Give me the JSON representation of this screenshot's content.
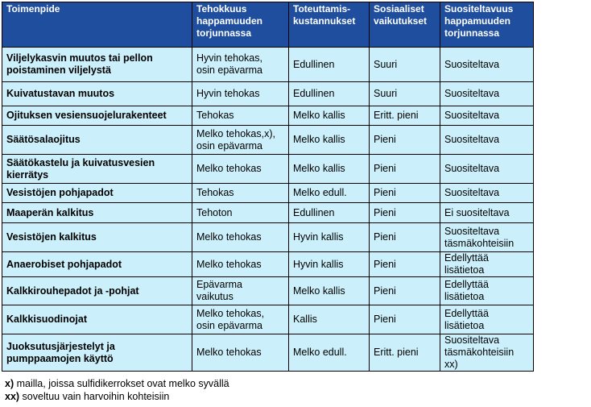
{
  "headers": [
    "Toimenpide",
    "Tehokkuus\nhappamuuden\ntorjunnassa",
    "Toteuttamis-\nkustannukset",
    "Sosiaaliset\nvaikutukset",
    "Suositeltavuus\nhappamuuden\ntorjunnassa"
  ],
  "rows": [
    [
      "Viljelykasvin muutos tai pellon\npoistaminen viljelystä",
      "Hyvin tehokas,\nosin epävarma",
      "Edullinen",
      "Suuri",
      "Suositeltava"
    ],
    [
      "Kuivatustavan muutos",
      "Hyvin tehokas",
      "Edullinen",
      "Suuri",
      "Suositeltava"
    ],
    [
      "Ojituksen vesiensuojelurakenteet",
      "Tehokas",
      "Melko kallis",
      "Eritt. pieni",
      "Suositeltava"
    ],
    [
      "Säätösalaojitus",
      "Melko tehokas,x),\nosin epävarma",
      "Melko kallis",
      "Pieni",
      "Suositeltava"
    ],
    [
      "Säätökastelu ja kuivatusvesien\nkierrätys",
      "Melko tehokas",
      "Melko kallis",
      "Pieni",
      "Suositeltava"
    ],
    [
      "Vesistöjen pohjapadot",
      "Tehokas",
      "Melko edull.",
      "Pieni",
      "Suositeltava"
    ],
    [
      "Maaperän kalkitus",
      "Tehoton",
      "Edullinen",
      "Pieni",
      "Ei suositeltava"
    ],
    [
      "Vesistöjen kalkitus",
      "Melko tehokas",
      "Hyvin kallis",
      "Pieni",
      "Suositeltava\ntäsmäkohteisiin"
    ],
    [
      "Anaerobiset pohjapadot",
      "Melko tehokas",
      "Hyvin kallis",
      "Pieni",
      "Edellyttää\nlisätietoa"
    ],
    [
      "Kalkkirouhepadot ja -pohjat",
      "Epävarma\nvaikutus",
      "Melko kallis",
      "Pieni",
      "Edellyttää\nlisätietoa"
    ],
    [
      "Kalkkisuodinojat",
      "Melko tehokas,\nosin epävarma",
      "Kallis",
      "Pieni",
      "Edellyttää\nlisätietoa"
    ],
    [
      "Juoksutusjärjestelyt ja\npumppaamojen käyttö",
      "Melko tehokas",
      "Melko edull.",
      "Eritt. pieni",
      "Suositeltava\ntäsmäkohteisiin\nxx)"
    ]
  ],
  "footnotes": [
    {
      "mark": "x)",
      "text": " mailla, joissa sulfidikerrokset ovat melko syvällä"
    },
    {
      "mark": "xx)",
      "text": " soveltuu vain harvoihin kohteisiin"
    }
  ]
}
